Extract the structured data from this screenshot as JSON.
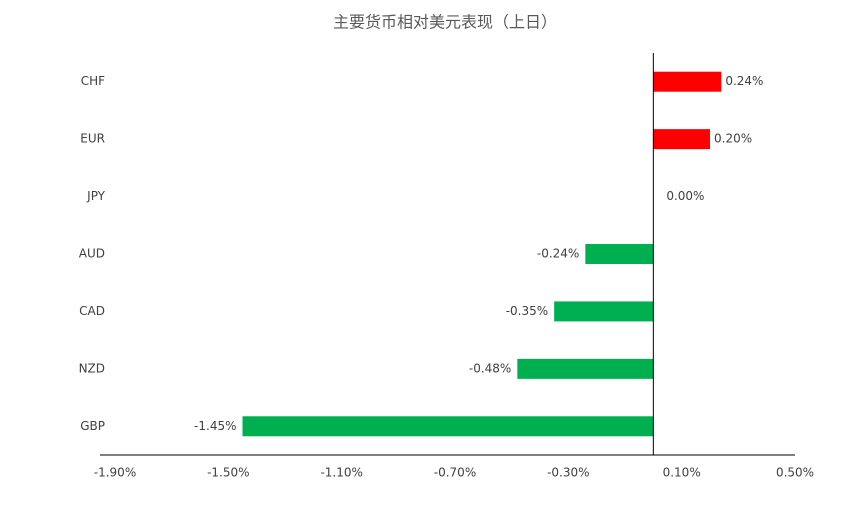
{
  "chart_data": {
    "type": "bar",
    "orientation": "horizontal",
    "title": "主要货币相对美元表现（上日）",
    "categories": [
      "CHF",
      "EUR",
      "JPY",
      "AUD",
      "CAD",
      "NZD",
      "GBP"
    ],
    "values": [
      0.24,
      0.2,
      0.0,
      -0.24,
      -0.35,
      -0.48,
      -1.45
    ],
    "value_labels": [
      "0.24%",
      "0.20%",
      "0.00%",
      "-0.24%",
      "-0.35%",
      "-0.48%",
      "-1.45%"
    ],
    "positive_color": "#ff0000",
    "negative_color": "#00b050",
    "xlim": [
      -1.9,
      0.5
    ],
    "xticks": [
      {
        "value": -1.9,
        "label": "-1.90%"
      },
      {
        "value": -1.5,
        "label": "-1.50%"
      },
      {
        "value": -1.1,
        "label": "-1.10%"
      },
      {
        "value": -0.7,
        "label": "-0.70%"
      },
      {
        "value": -0.3,
        "label": "-0.30%"
      },
      {
        "value": 0.1,
        "label": "0.10%"
      },
      {
        "value": 0.5,
        "label": "0.50%"
      }
    ],
    "grid": false
  }
}
